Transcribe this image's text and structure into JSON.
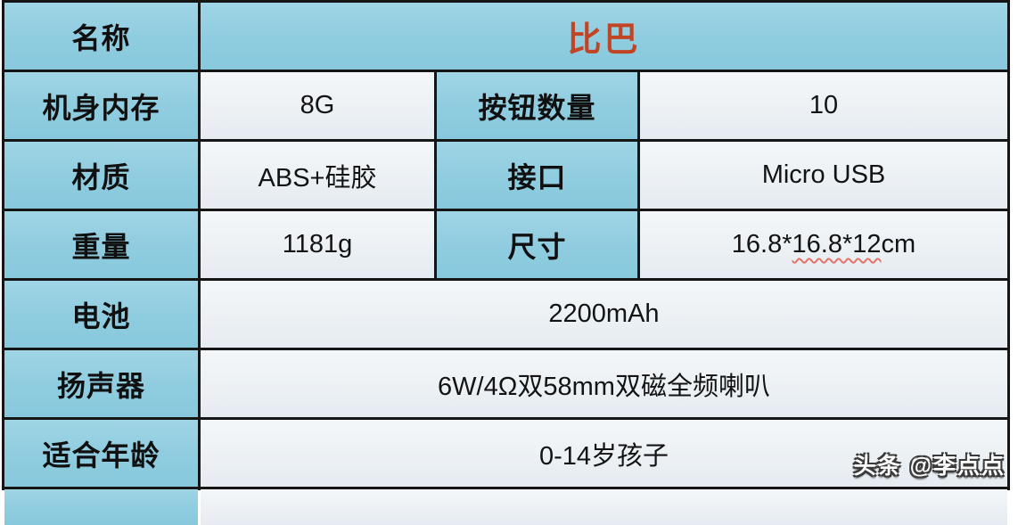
{
  "table": {
    "title_row": {
      "label": "名称",
      "value": "比巴"
    },
    "rows_4col": [
      {
        "label1": "机身内存",
        "value1": "8G",
        "label2": "按钮数量",
        "value2": "10"
      },
      {
        "label1": "材质",
        "value1": "ABS+硅胶",
        "label2": "接口",
        "value2": "Micro USB"
      },
      {
        "label1": "重量",
        "value1": "1181g",
        "label2": "尺寸",
        "value2_prefix": "16.8*",
        "value2_marked": "16.8*12",
        "value2_suffix": "cm"
      }
    ],
    "rows_merged": [
      {
        "label": "电池",
        "value": "2200mAh"
      },
      {
        "label": "扬声器",
        "value": "6W/4Ω双58mm双磁全频喇叭"
      },
      {
        "label": "适合年龄",
        "value": "0-14岁孩子"
      }
    ]
  },
  "watermark": "头条 @李点点",
  "colors": {
    "header_blue": "#92cde0",
    "cell_light": "#edf1f5",
    "border_black": "#151515",
    "title_red": "#c14524",
    "spellcheck_red": "#e57368",
    "watermark_white": "#ffffff"
  }
}
